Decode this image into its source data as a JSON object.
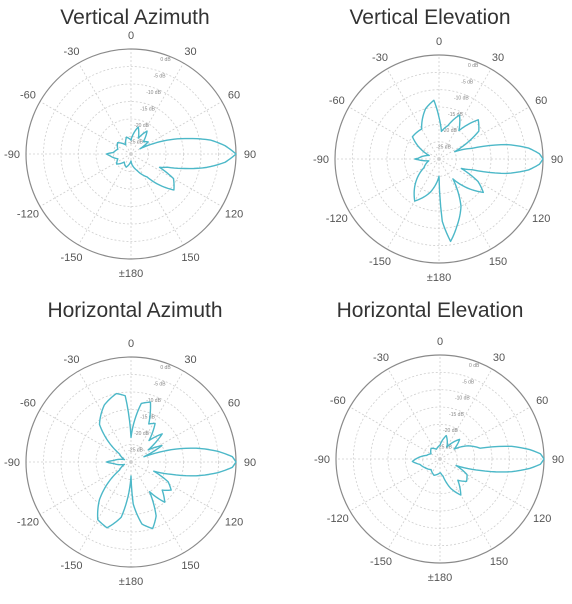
{
  "colors": {
    "pattern": "#4cb8c8",
    "outer_ring": "#8a8a8a",
    "grid": "#cfcfcf",
    "label": "#555555",
    "db_label": "#888888"
  },
  "chart_data": [
    {
      "type": "polar",
      "title": "Vertical Azimuth",
      "angle_ticks": [
        "0",
        "30",
        "60",
        "90",
        "120",
        "150",
        "±180",
        "-150",
        "-120",
        "-90",
        "-60",
        "-30"
      ],
      "radial_ticks": [
        "0 dB",
        "-5 dB",
        "-10 dB",
        "-15 dB",
        "-20 dB",
        "-25 dB"
      ],
      "rlim": [
        -30,
        0
      ],
      "grid": true,
      "series": [
        {
          "angles": [
            -180,
            -160,
            -140,
            -125,
            -110,
            -95,
            -90,
            -85,
            -70,
            -50,
            -30,
            -15,
            0,
            15,
            25,
            35,
            45,
            55,
            60,
            65,
            70,
            75,
            80,
            85,
            90,
            95,
            100,
            105,
            110,
            115,
            120,
            130,
            145,
            160,
            175
          ],
          "values": [
            -28,
            -26,
            -27,
            -25,
            -26,
            -24,
            -23,
            -25,
            -26,
            -25,
            -27,
            -25,
            -26,
            -22,
            -25,
            -22,
            -25,
            -24,
            -27,
            -23,
            -18,
            -13,
            -7,
            -3,
            0,
            -3,
            -8,
            -14,
            -19,
            -21,
            -16,
            -14,
            -22,
            -25,
            -27
          ]
        }
      ]
    },
    {
      "type": "polar",
      "title": "Vertical Elevation",
      "angle_ticks": [
        "0",
        "30",
        "60",
        "90",
        "120",
        "150",
        "±180",
        "-150",
        "-120",
        "-90",
        "-60",
        "-30"
      ],
      "radial_ticks": [
        "0 dB",
        "-5 dB",
        "-10 dB",
        "-15 dB",
        "-20 dB",
        "-25 dB"
      ],
      "rlim": [
        -30,
        0
      ],
      "grid": true,
      "series": [
        {
          "angles": [
            -180,
            -165,
            -150,
            -140,
            -120,
            -100,
            -92,
            -90,
            -88,
            -70,
            -50,
            -30,
            -15,
            -5,
            0,
            5,
            15,
            25,
            35,
            45,
            55,
            65,
            72,
            78,
            83,
            87,
            90,
            93,
            97,
            102,
            108,
            113,
            120,
            127,
            135,
            145,
            155,
            165,
            172,
            177
          ],
          "values": [
            -25,
            -20,
            -16,
            -19,
            -25,
            -27,
            -24,
            -23,
            -24,
            -27,
            -20,
            -20,
            -15,
            -13,
            -18,
            -22,
            -20,
            -16,
            -20,
            -14,
            -16,
            -25,
            -20,
            -10,
            -4,
            -1,
            0,
            -1,
            -4,
            -10,
            -20,
            -23,
            -17,
            -14,
            -18,
            -23,
            -15,
            -10,
            -6,
            -12
          ]
        }
      ]
    },
    {
      "type": "polar",
      "title": "Horizontal Azimuth",
      "angle_ticks": [
        "0",
        "30",
        "60",
        "90",
        "120",
        "150",
        "±180",
        "-150",
        "-120",
        "-90",
        "-60",
        "-30"
      ],
      "radial_ticks": [
        "0 dB",
        "-5 dB",
        "-10 dB",
        "-15 dB",
        "-20 dB",
        "-25 dB"
      ],
      "rlim": [
        -30,
        0
      ],
      "grid": true,
      "series": [
        {
          "angles": [
            -180,
            -170,
            -160,
            -150,
            -140,
            -125,
            -110,
            -95,
            -90,
            -85,
            -70,
            -55,
            -40,
            -25,
            -12,
            -5,
            0,
            5,
            10,
            18,
            25,
            32,
            40,
            48,
            55,
            62,
            68,
            73,
            78,
            83,
            87,
            90,
            93,
            97,
            102,
            107,
            112,
            118,
            125,
            132,
            140,
            148,
            155,
            162,
            170,
            177
          ],
          "values": [
            -26,
            -14,
            -10,
            -11,
            -16,
            -26,
            -28,
            -25,
            -23,
            -25,
            -28,
            -26,
            -16,
            -12,
            -10,
            -11,
            -23,
            -18,
            -13,
            -12,
            -18,
            -17,
            -22,
            -18,
            -24,
            -20,
            -26,
            -18,
            -11,
            -5,
            -1,
            0,
            -1,
            -5,
            -11,
            -18,
            -23,
            -18,
            -16,
            -18,
            -15,
            -20,
            -13,
            -10,
            -12,
            -18
          ]
        }
      ]
    },
    {
      "type": "polar",
      "title": "Horizontal Elevation",
      "angle_ticks": [
        "0",
        "30",
        "60",
        "90",
        "120",
        "150",
        "±180",
        "-150",
        "-120",
        "-90",
        "-60",
        "-30"
      ],
      "radial_ticks": [
        "0 dB",
        "-5 dB",
        "-10 dB",
        "-15 dB",
        "-20 dB",
        "-25 dB"
      ],
      "rlim": [
        -30,
        0
      ],
      "grid": true,
      "series": [
        {
          "angles": [
            -180,
            -160,
            -140,
            -120,
            -105,
            -95,
            -90,
            -85,
            -75,
            -60,
            -40,
            -20,
            0,
            15,
            30,
            45,
            55,
            65,
            75,
            80,
            84,
            87,
            90,
            93,
            96,
            100,
            106,
            112,
            120,
            130,
            140,
            150,
            160,
            170,
            178
          ],
          "values": [
            -26,
            -25,
            -26,
            -25,
            -24,
            -22,
            -23,
            -24,
            -26,
            -27,
            -26,
            -27,
            -26,
            -23,
            -26,
            -22,
            -25,
            -21,
            -18,
            -9,
            -4,
            -1,
            0,
            -1,
            -4,
            -9,
            -18,
            -25,
            -21,
            -20,
            -22,
            -18,
            -21,
            -25,
            -26
          ]
        }
      ]
    }
  ]
}
